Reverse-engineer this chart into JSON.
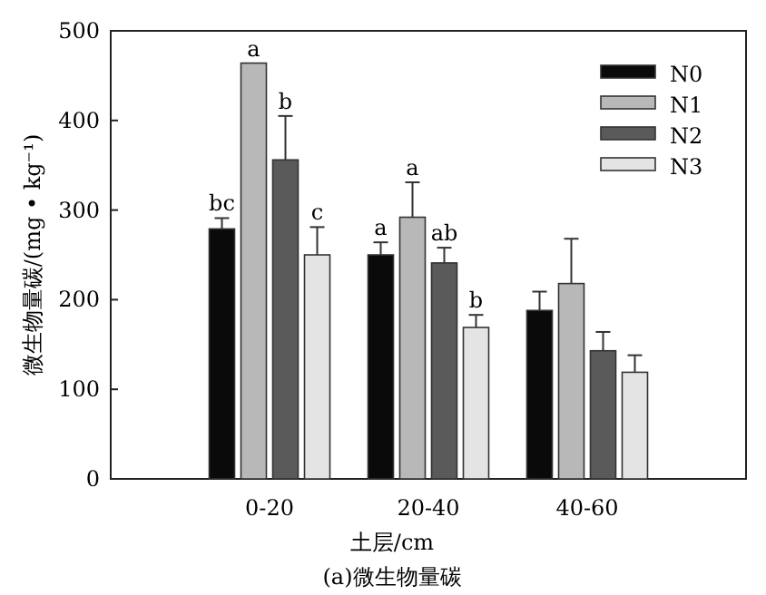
{
  "chart_data": {
    "type": "bar",
    "title": "(a)微生物量碳",
    "xlabel": "土层/cm",
    "ylabel": "微生物量碳/(mg • kg⁻¹)",
    "categories": [
      "0-20",
      "20-40",
      "40-60"
    ],
    "series": [
      {
        "name": "N0",
        "color": "#0a0a0a",
        "values": [
          279,
          250,
          188
        ],
        "errors": [
          [
            279,
            291
          ],
          [
            250,
            264
          ],
          [
            188,
            209
          ]
        ],
        "value_labels": [
          "bc",
          "a",
          null
        ]
      },
      {
        "name": "N1",
        "color": "#b8b8b8",
        "values": [
          464,
          292,
          218
        ],
        "errors": [
          null,
          [
            292,
            331
          ],
          [
            218,
            268
          ]
        ],
        "value_labels": [
          "a",
          "a",
          null
        ]
      },
      {
        "name": "N2",
        "color": "#5a5a5a",
        "values": [
          356,
          241,
          143
        ],
        "errors": [
          [
            356,
            405
          ],
          [
            241,
            258
          ],
          [
            143,
            164
          ]
        ],
        "value_labels": [
          "b",
          "ab",
          null
        ]
      },
      {
        "name": "N3",
        "color": "#e4e4e4",
        "values": [
          250,
          169,
          119
        ],
        "errors": [
          [
            250,
            281
          ],
          [
            169,
            183
          ],
          [
            119,
            138
          ]
        ],
        "value_labels": [
          "c",
          "b",
          null
        ]
      }
    ],
    "ylim": [
      0,
      500
    ],
    "yticks": [
      0,
      100,
      200,
      300,
      400,
      500
    ],
    "grid": false,
    "legend": "top right"
  }
}
